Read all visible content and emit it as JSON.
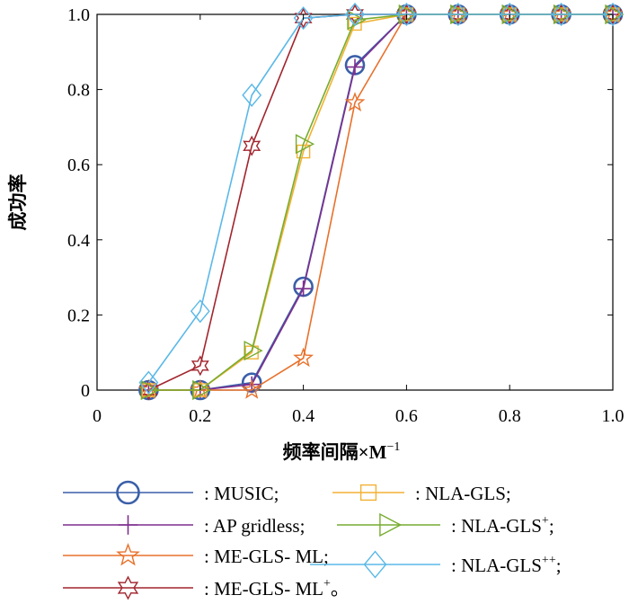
{
  "chart_data": {
    "type": "line",
    "xlabel": "频率间隔×M",
    "xlabel_sup": "−1",
    "ylabel": "成功率",
    "xlim": [
      0,
      1.0
    ],
    "ylim": [
      0,
      1.0
    ],
    "xticks": [
      "0",
      "0.2",
      "0.4",
      "0.6",
      "0.8",
      "1.0"
    ],
    "yticks": [
      "0",
      "0.2",
      "0.4",
      "0.6",
      "0.8",
      "1.0"
    ],
    "grid": false,
    "legend_position": "bottom",
    "x": [
      0.1,
      0.2,
      0.3,
      0.4,
      0.5,
      0.6,
      0.7,
      0.8,
      0.9,
      1.0
    ],
    "series": [
      {
        "name": "MUSIC;",
        "prefix": ": ",
        "sup": "",
        "suffix": "",
        "color": "#3a5fa8",
        "marker": "circle",
        "values": [
          0,
          0,
          0.02,
          0.275,
          0.865,
          1.0,
          1.0,
          1.0,
          1.0,
          1.0
        ]
      },
      {
        "name": "AP gridless;",
        "prefix": ": ",
        "sup": "",
        "suffix": "",
        "color": "#7e2f8e",
        "marker": "plus",
        "values": [
          0,
          0,
          0.015,
          0.27,
          0.86,
          1.0,
          1.0,
          1.0,
          1.0,
          1.0
        ]
      },
      {
        "name": "ME-GLS- ML;",
        "prefix": ": ",
        "sup": "",
        "suffix": "",
        "color": "#e8702a",
        "marker": "star5",
        "values": [
          0,
          0,
          0,
          0.085,
          0.765,
          1.0,
          1.0,
          1.0,
          1.0,
          1.0
        ]
      },
      {
        "name": "ME-GLS- ML",
        "prefix": ": ",
        "sup": "+",
        "suffix": "。",
        "color": "#a2252e",
        "marker": "star6",
        "values": [
          0,
          0.065,
          0.65,
          0.99,
          1.0,
          1.0,
          1.0,
          1.0,
          1.0,
          1.0
        ]
      },
      {
        "name": "NLA-GLS;",
        "prefix": ": ",
        "sup": "",
        "suffix": "",
        "color": "#f2b133",
        "marker": "square",
        "values": [
          0,
          0,
          0.1,
          0.635,
          0.975,
          1.0,
          1.0,
          1.0,
          1.0,
          1.0
        ]
      },
      {
        "name": "NLA-GLS",
        "prefix": ": ",
        "sup": "+",
        "suffix": ";",
        "color": "#77ac30",
        "marker": "triangle",
        "values": [
          0,
          0,
          0.105,
          0.655,
          0.985,
          1.0,
          1.0,
          1.0,
          1.0,
          1.0
        ]
      },
      {
        "name": "NLA-GLS",
        "prefix": ": ",
        "sup": "++",
        "suffix": ";",
        "color": "#5bb8e8",
        "marker": "diamond",
        "values": [
          0.02,
          0.21,
          0.785,
          0.99,
          1.0,
          1.0,
          1.0,
          1.0,
          1.0,
          1.0
        ]
      }
    ]
  }
}
